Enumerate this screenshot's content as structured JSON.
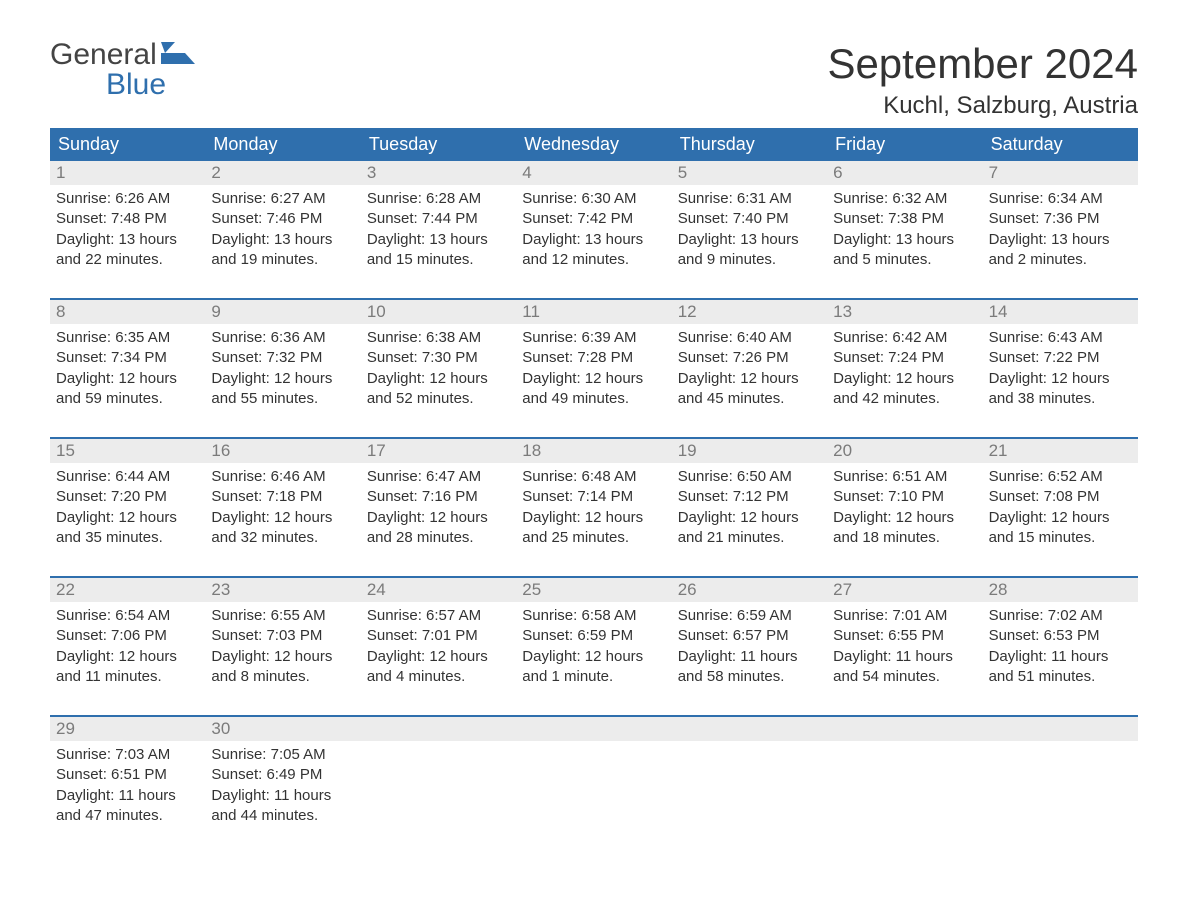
{
  "logo": {
    "line1": "General",
    "line2": "Blue"
  },
  "title": "September 2024",
  "location": "Kuchl, Salzburg, Austria",
  "colors": {
    "header_bg": "#2f6fad",
    "header_text": "#ffffff",
    "daynum_bg": "#ececec",
    "daynum_text": "#7b7b7b",
    "body_text": "#333333",
    "week_border": "#2f6fad"
  },
  "day_labels": [
    "Sunday",
    "Monday",
    "Tuesday",
    "Wednesday",
    "Thursday",
    "Friday",
    "Saturday"
  ],
  "weeks": [
    [
      {
        "n": "1",
        "sunrise": "6:26 AM",
        "sunset": "7:48 PM",
        "daylight": "13 hours and 22 minutes."
      },
      {
        "n": "2",
        "sunrise": "6:27 AM",
        "sunset": "7:46 PM",
        "daylight": "13 hours and 19 minutes."
      },
      {
        "n": "3",
        "sunrise": "6:28 AM",
        "sunset": "7:44 PM",
        "daylight": "13 hours and 15 minutes."
      },
      {
        "n": "4",
        "sunrise": "6:30 AM",
        "sunset": "7:42 PM",
        "daylight": "13 hours and 12 minutes."
      },
      {
        "n": "5",
        "sunrise": "6:31 AM",
        "sunset": "7:40 PM",
        "daylight": "13 hours and 9 minutes."
      },
      {
        "n": "6",
        "sunrise": "6:32 AM",
        "sunset": "7:38 PM",
        "daylight": "13 hours and 5 minutes."
      },
      {
        "n": "7",
        "sunrise": "6:34 AM",
        "sunset": "7:36 PM",
        "daylight": "13 hours and 2 minutes."
      }
    ],
    [
      {
        "n": "8",
        "sunrise": "6:35 AM",
        "sunset": "7:34 PM",
        "daylight": "12 hours and 59 minutes."
      },
      {
        "n": "9",
        "sunrise": "6:36 AM",
        "sunset": "7:32 PM",
        "daylight": "12 hours and 55 minutes."
      },
      {
        "n": "10",
        "sunrise": "6:38 AM",
        "sunset": "7:30 PM",
        "daylight": "12 hours and 52 minutes."
      },
      {
        "n": "11",
        "sunrise": "6:39 AM",
        "sunset": "7:28 PM",
        "daylight": "12 hours and 49 minutes."
      },
      {
        "n": "12",
        "sunrise": "6:40 AM",
        "sunset": "7:26 PM",
        "daylight": "12 hours and 45 minutes."
      },
      {
        "n": "13",
        "sunrise": "6:42 AM",
        "sunset": "7:24 PM",
        "daylight": "12 hours and 42 minutes."
      },
      {
        "n": "14",
        "sunrise": "6:43 AM",
        "sunset": "7:22 PM",
        "daylight": "12 hours and 38 minutes."
      }
    ],
    [
      {
        "n": "15",
        "sunrise": "6:44 AM",
        "sunset": "7:20 PM",
        "daylight": "12 hours and 35 minutes."
      },
      {
        "n": "16",
        "sunrise": "6:46 AM",
        "sunset": "7:18 PM",
        "daylight": "12 hours and 32 minutes."
      },
      {
        "n": "17",
        "sunrise": "6:47 AM",
        "sunset": "7:16 PM",
        "daylight": "12 hours and 28 minutes."
      },
      {
        "n": "18",
        "sunrise": "6:48 AM",
        "sunset": "7:14 PM",
        "daylight": "12 hours and 25 minutes."
      },
      {
        "n": "19",
        "sunrise": "6:50 AM",
        "sunset": "7:12 PM",
        "daylight": "12 hours and 21 minutes."
      },
      {
        "n": "20",
        "sunrise": "6:51 AM",
        "sunset": "7:10 PM",
        "daylight": "12 hours and 18 minutes."
      },
      {
        "n": "21",
        "sunrise": "6:52 AM",
        "sunset": "7:08 PM",
        "daylight": "12 hours and 15 minutes."
      }
    ],
    [
      {
        "n": "22",
        "sunrise": "6:54 AM",
        "sunset": "7:06 PM",
        "daylight": "12 hours and 11 minutes."
      },
      {
        "n": "23",
        "sunrise": "6:55 AM",
        "sunset": "7:03 PM",
        "daylight": "12 hours and 8 minutes."
      },
      {
        "n": "24",
        "sunrise": "6:57 AM",
        "sunset": "7:01 PM",
        "daylight": "12 hours and 4 minutes."
      },
      {
        "n": "25",
        "sunrise": "6:58 AM",
        "sunset": "6:59 PM",
        "daylight": "12 hours and 1 minute."
      },
      {
        "n": "26",
        "sunrise": "6:59 AM",
        "sunset": "6:57 PM",
        "daylight": "11 hours and 58 minutes."
      },
      {
        "n": "27",
        "sunrise": "7:01 AM",
        "sunset": "6:55 PM",
        "daylight": "11 hours and 54 minutes."
      },
      {
        "n": "28",
        "sunrise": "7:02 AM",
        "sunset": "6:53 PM",
        "daylight": "11 hours and 51 minutes."
      }
    ],
    [
      {
        "n": "29",
        "sunrise": "7:03 AM",
        "sunset": "6:51 PM",
        "daylight": "11 hours and 47 minutes."
      },
      {
        "n": "30",
        "sunrise": "7:05 AM",
        "sunset": "6:49 PM",
        "daylight": "11 hours and 44 minutes."
      },
      null,
      null,
      null,
      null,
      null
    ]
  ],
  "labels": {
    "sunrise": "Sunrise: ",
    "sunset": "Sunset: ",
    "daylight": "Daylight: "
  }
}
